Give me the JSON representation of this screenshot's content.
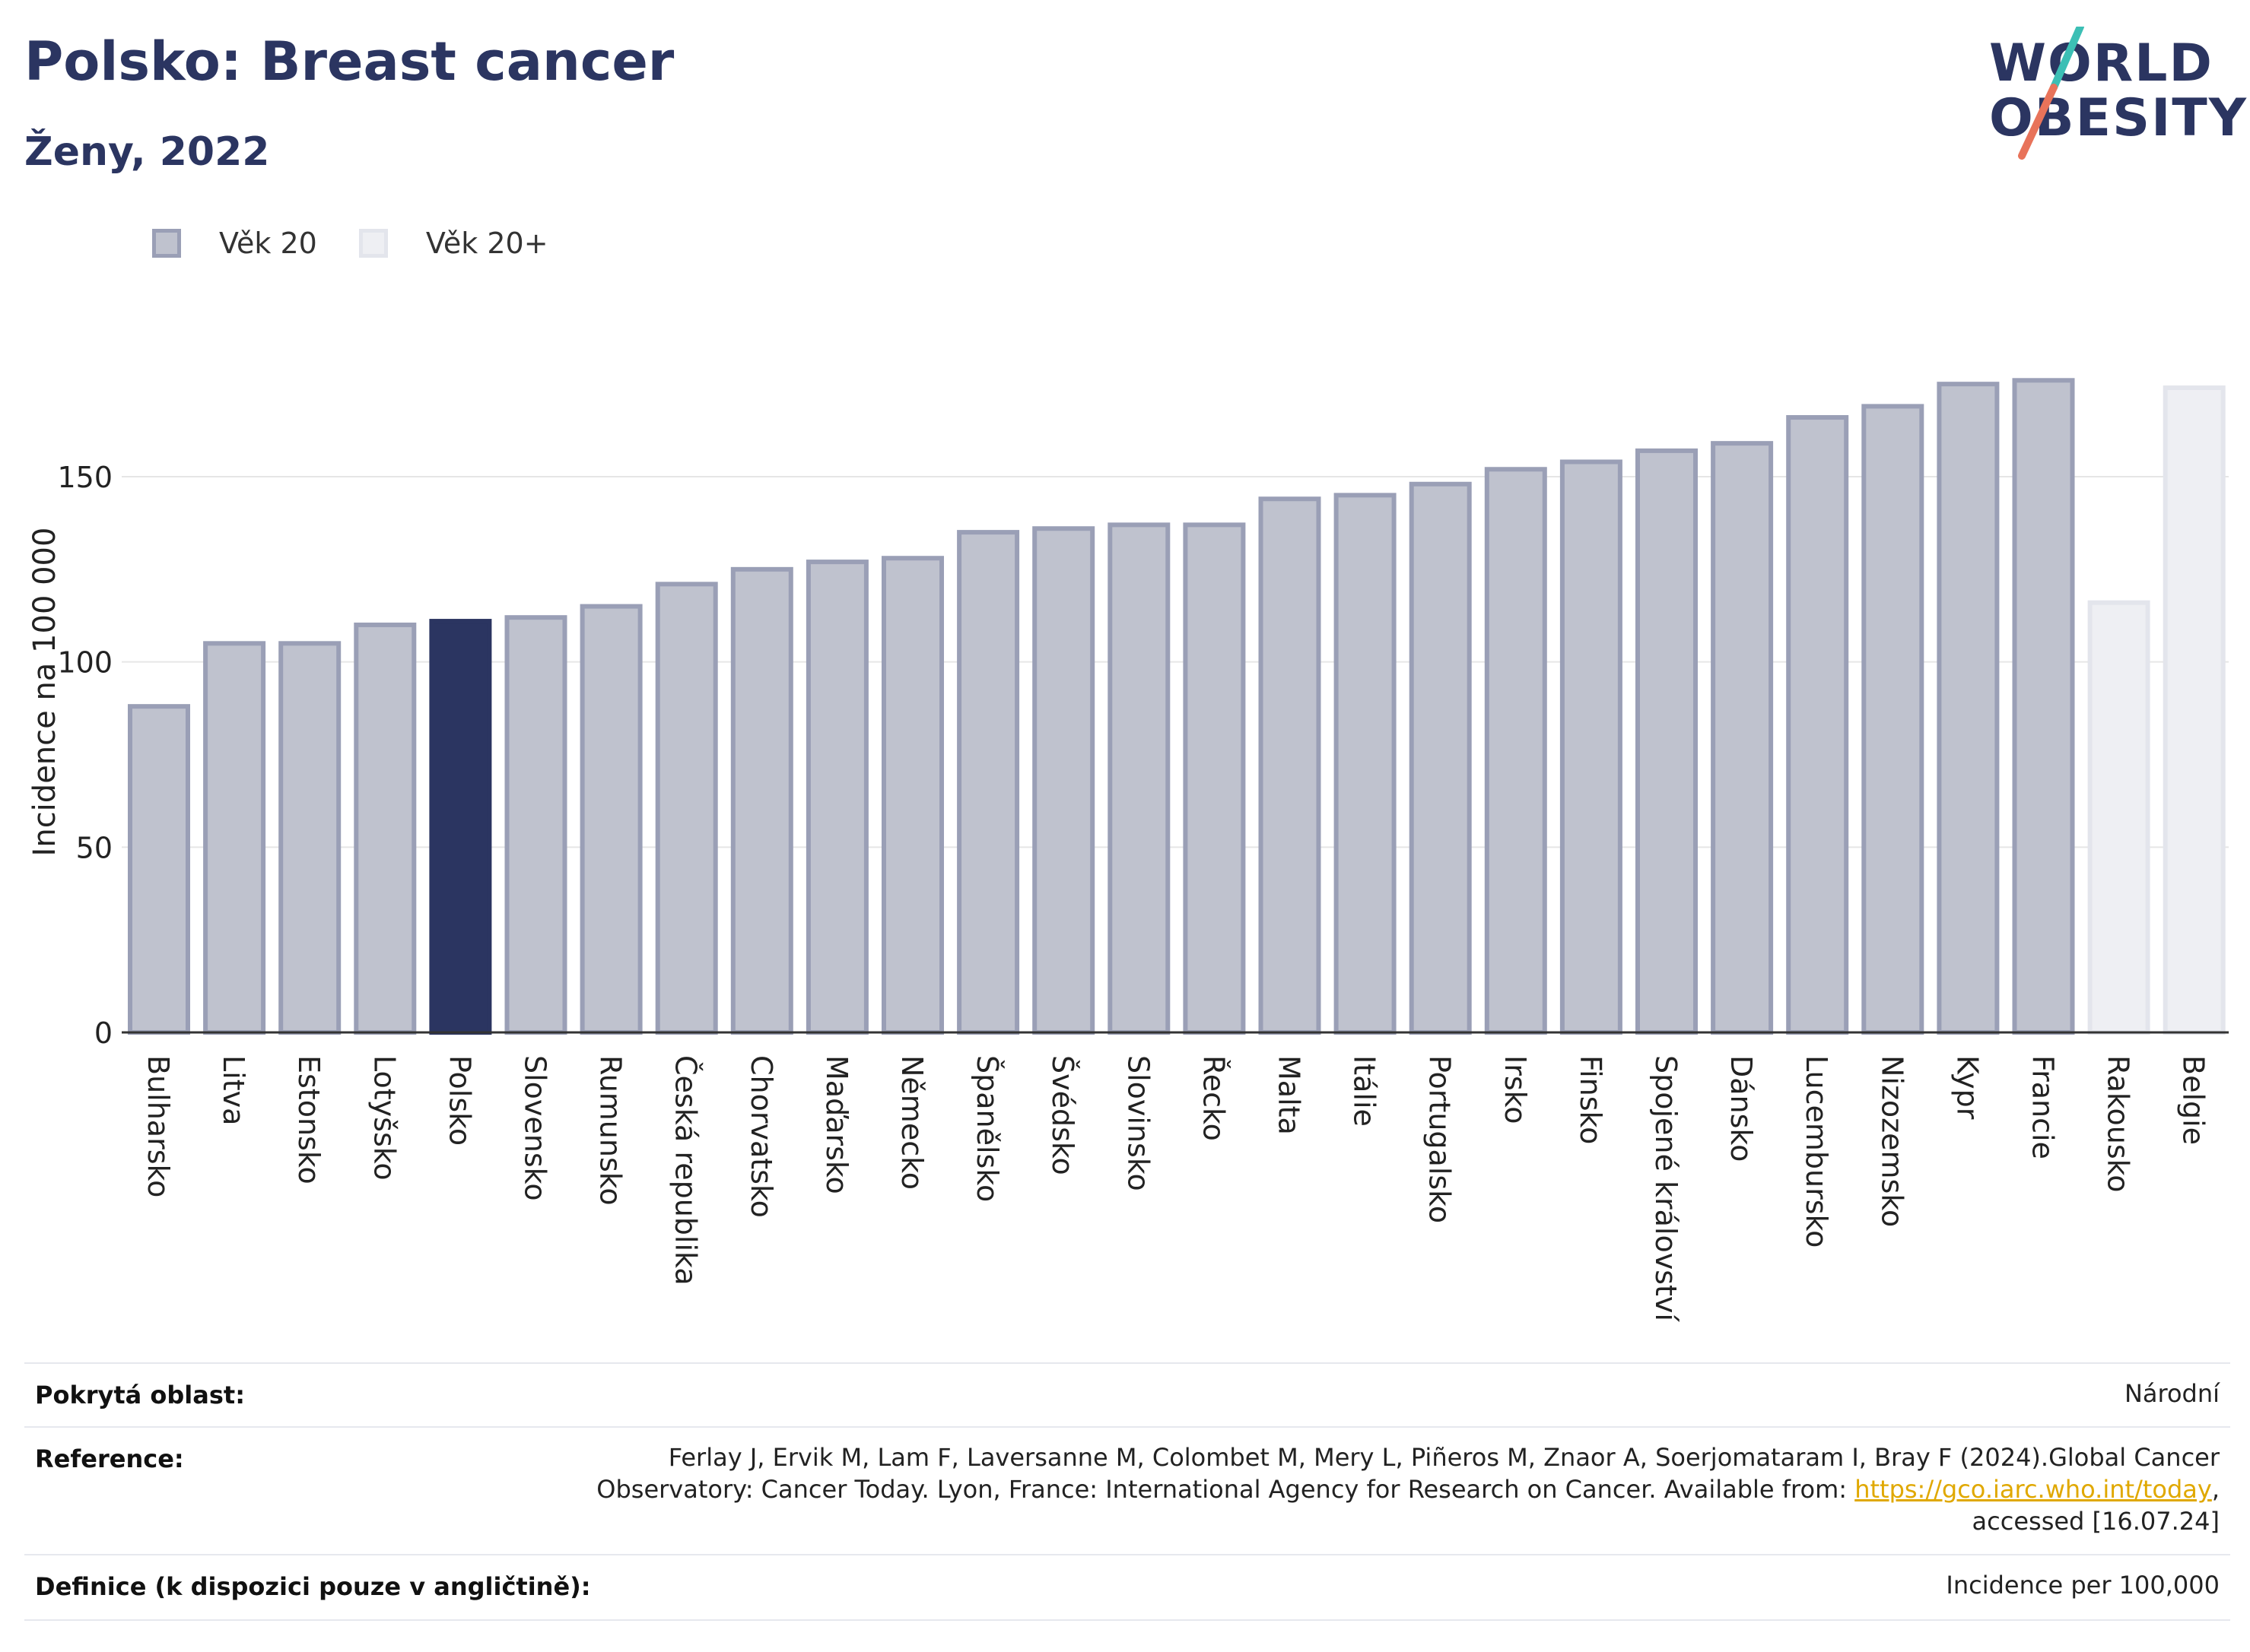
{
  "header": {
    "title": "Polsko: Breast cancer",
    "subtitle": "Ženy, 2022"
  },
  "logo": {
    "line1": "WORLD",
    "line2": "OBESITY",
    "slash_colors": [
      "#3cbfb5",
      "#e8735a"
    ]
  },
  "colors": {
    "bar_fill": "#bfc2ce",
    "bar_stroke": "#9a9fb6",
    "highlight": "#2b3561",
    "light_fill": "#eeeff3",
    "light_stroke": "#e3e5ec",
    "grid": "#e6e6e6",
    "axis": "#333333"
  },
  "chart_data": {
    "type": "bar",
    "ylabel": "Incidence na 100 000",
    "ylim": [
      0,
      190
    ],
    "yticks": [
      0,
      50,
      100,
      150
    ],
    "grid": true,
    "legend": [
      {
        "label": "Věk 20",
        "style": "default"
      },
      {
        "label": "Věk 20+",
        "style": "light"
      }
    ],
    "categories": [
      "Bulharsko",
      "Litva",
      "Estonsko",
      "Lotyšsko",
      "Polsko",
      "Slovensko",
      "Rumunsko",
      "Česká republika",
      "Chorvatsko",
      "Maďarsko",
      "Německo",
      "Španělsko",
      "Švédsko",
      "Slovinsko",
      "Řecko",
      "Malta",
      "Itálie",
      "Portugalsko",
      "Irsko",
      "Finsko",
      "Spojené království",
      "Dánsko",
      "Lucembursko",
      "Nizozemsko",
      "Kypr",
      "Francie",
      "Rakousko",
      "Belgie"
    ],
    "values": [
      88,
      105,
      105,
      110,
      111,
      112,
      115,
      121,
      125,
      127,
      128,
      135,
      136,
      137,
      137,
      144,
      145,
      148,
      152,
      154,
      157,
      159,
      166,
      169,
      175,
      176,
      116,
      174
    ],
    "styles": [
      "default",
      "default",
      "default",
      "default",
      "highlight",
      "default",
      "default",
      "default",
      "default",
      "default",
      "default",
      "default",
      "default",
      "default",
      "default",
      "default",
      "default",
      "default",
      "default",
      "default",
      "default",
      "default",
      "default",
      "default",
      "default",
      "default",
      "light",
      "light"
    ]
  },
  "footer": {
    "coverage_label": "Pokrytá oblast:",
    "coverage_value": "Národní",
    "reference_label": "Reference:",
    "reference_line1": "Ferlay J, Ervik M, Lam F, Laversanne M, Colombet M, Mery L, Piñeros M, Znaor A, Soerjomataram I, Bray F (2024).Global Cancer",
    "reference_line2_pre": "Observatory: Cancer Today. Lyon, France: International Agency for Research on Cancer. Available from: ",
    "reference_link": "https://gco.iarc.who.int/today",
    "reference_line2_post": ",",
    "reference_line3": "accessed [16.07.24]",
    "definition_label": "Definice (k dispozici pouze v angličtině):",
    "definition_value": "Incidence per 100,000"
  }
}
